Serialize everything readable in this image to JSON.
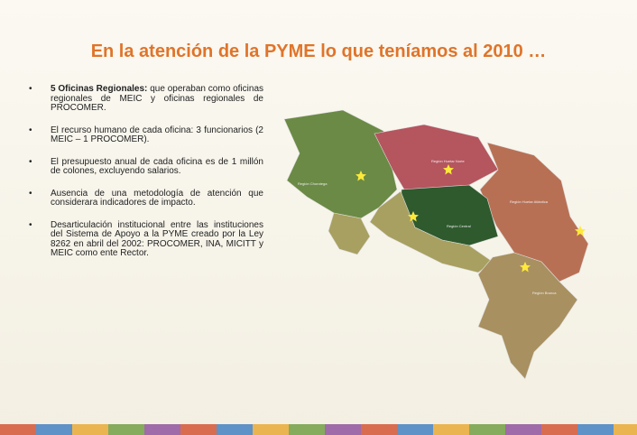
{
  "title": "En la atención de la PYME lo que teníamos al 2010 …",
  "bullets": [
    {
      "bold": "5 Oficinas Regionales:",
      "text": " que operaban como oficinas regionales de MEIC y oficinas regionales de PROCOMER."
    },
    {
      "text": "El recurso humano de cada oficina: 3 funcionarios (2 MEIC – 1 PROCOMER)."
    },
    {
      "text": "El presupuesto anual de cada oficina es de 1 millón de colones, excluyendo salarios."
    },
    {
      "text": "Ausencia de una metodología de atención que considerara indicadores de impacto."
    },
    {
      "text": "Desarticulación institucional entre las instituciones del Sistema de Apoyo a la PYME creado por la Ley 8262 en abril del 2002: PROCOMER, INA, MICITT y MEIC como ente Rector."
    }
  ],
  "map_labels": [
    "Región Chorotega",
    "Región Huetar Norte",
    "Región Huetar Atlántica",
    "Región Central",
    "Región Brunca"
  ]
}
